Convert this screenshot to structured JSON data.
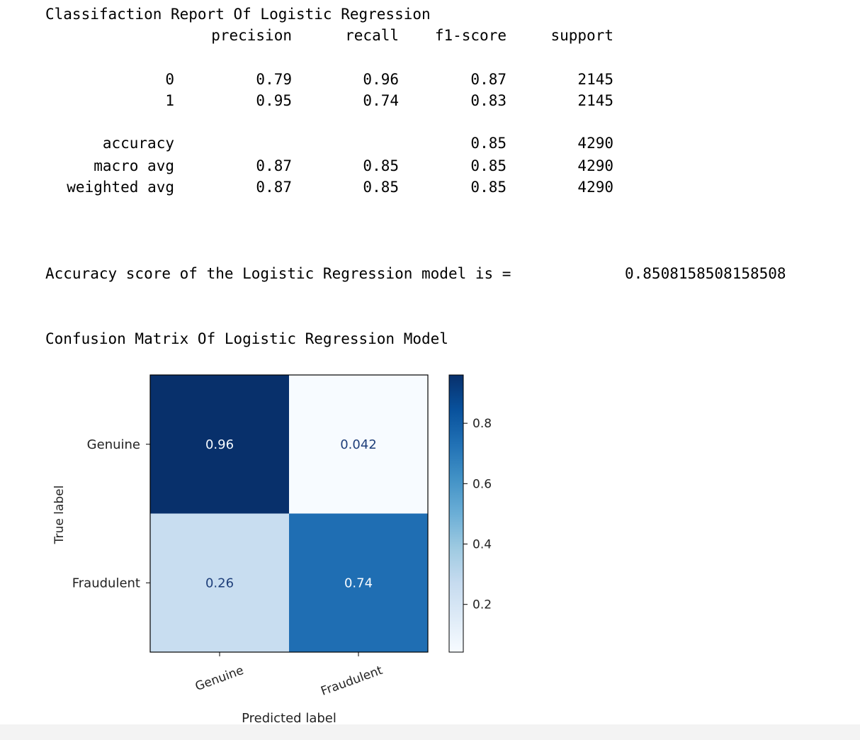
{
  "report": {
    "title": "Classifaction Report Of Logistic Regression",
    "columns": [
      "precision",
      "recall",
      "f1-score",
      "support"
    ],
    "rows": [
      {
        "label": "0",
        "precision": "0.79",
        "recall": "0.96",
        "f1": "0.87",
        "support": "2145"
      },
      {
        "label": "1",
        "precision": "0.95",
        "recall": "0.74",
        "f1": "0.83",
        "support": "2145"
      },
      {
        "label": "accuracy",
        "precision": "",
        "recall": "",
        "f1": "0.85",
        "support": "4290"
      },
      {
        "label": "macro avg",
        "precision": "0.87",
        "recall": "0.85",
        "f1": "0.85",
        "support": "4290"
      },
      {
        "label": "weighted avg",
        "precision": "0.87",
        "recall": "0.85",
        "f1": "0.85",
        "support": "4290"
      }
    ]
  },
  "accuracy": {
    "text": "Accuracy score of the Logistic Regression model is =",
    "value": "0.8508158508158508"
  },
  "confusion": {
    "title": "Confusion Matrix Of Logistic Regression Model"
  },
  "chart_data": {
    "type": "heatmap",
    "xlabel": "Predicted label",
    "ylabel": "True label",
    "x_categories": [
      "Genuine",
      "Fraudulent"
    ],
    "y_categories": [
      "Genuine",
      "Fraudulent"
    ],
    "values": [
      [
        0.96,
        0.042
      ],
      [
        0.26,
        0.74
      ]
    ],
    "value_labels": [
      [
        "0.96",
        "0.042"
      ],
      [
        "0.26",
        "0.74"
      ]
    ],
    "colormap": "Blues",
    "colorbar": {
      "range": [
        0.042,
        0.96
      ],
      "ticks": [
        0.2,
        0.4,
        0.6,
        0.8
      ],
      "tick_labels": [
        "0.2",
        "0.4",
        "0.6",
        "0.8"
      ]
    }
  }
}
